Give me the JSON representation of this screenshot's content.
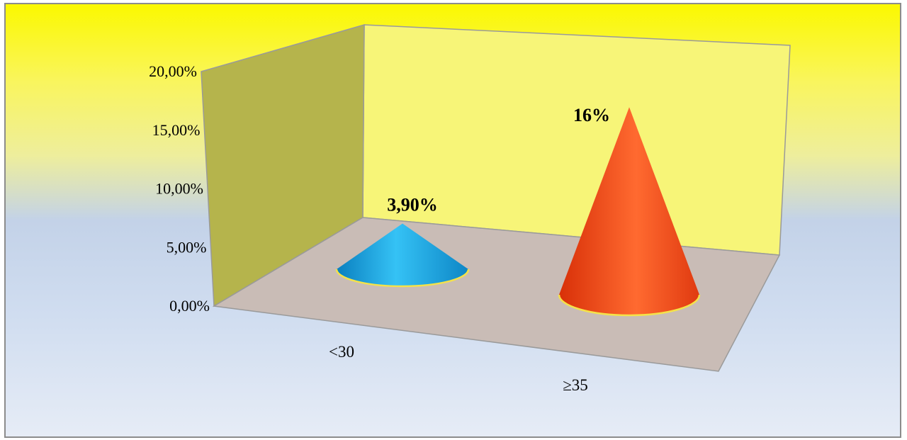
{
  "chart_data": {
    "type": "bar",
    "style": "3d-cone",
    "categories": [
      "<30",
      "≥35"
    ],
    "values": [
      3.9,
      16
    ],
    "data_labels": [
      "3,90%",
      "16%"
    ],
    "colors": [
      "#1aa8e8",
      "#f04010"
    ],
    "ylim": [
      0,
      20
    ],
    "y_ticks": [
      0,
      5,
      10,
      15,
      20
    ],
    "y_tick_labels": [
      "0,00%",
      "5,00%",
      "10,00%",
      "15,00%",
      "20,00%"
    ],
    "title": "",
    "xlabel": "",
    "ylabel": "",
    "grid": false,
    "legend": "none",
    "wall_colors": {
      "left": "#b5b44c",
      "back": "#f7f578",
      "floor": "#c9bcb6"
    }
  }
}
